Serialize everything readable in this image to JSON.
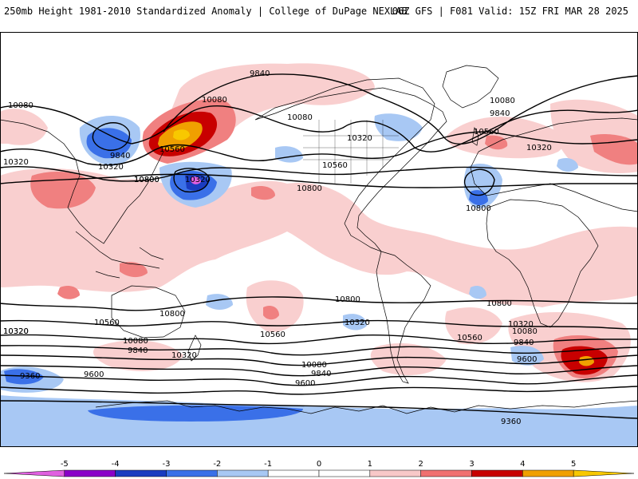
{
  "header": {
    "title": "250mb Height 1981-2010 Standardized Anomaly | College of DuPage NEXLAB",
    "model_info": "06Z GFS | F081 Valid: 15Z FRI MAR 28 2025"
  },
  "colorbar": {
    "ticks": [
      "-5",
      "-4",
      "-3",
      "-2",
      "-1",
      "0",
      "1",
      "2",
      "3",
      "4",
      "5"
    ],
    "colors": [
      "#e060e0",
      "#8a00c8",
      "#1a3cc0",
      "#3a70e8",
      "#a8c8f4",
      "#ffffff",
      "#ffffff",
      "#f8c8c8",
      "#f07070",
      "#c80000",
      "#f0a000",
      "#f8c800"
    ]
  },
  "contour_labels": [
    {
      "label": "9840",
      "value": 9840
    },
    {
      "label": "10080",
      "value": 10080
    },
    {
      "label": "10080",
      "value": 10080
    },
    {
      "label": "10080",
      "value": 10080
    },
    {
      "label": "9840",
      "value": 9840
    },
    {
      "label": "10080",
      "value": 10080
    },
    {
      "label": "10560",
      "value": 10560
    },
    {
      "label": "10320",
      "value": 10320
    },
    {
      "label": "10320",
      "value": 10320
    },
    {
      "label": "10320",
      "value": 10320
    },
    {
      "label": "10320",
      "value": 10320
    },
    {
      "label": "10560",
      "value": 10560
    },
    {
      "label": "10800",
      "value": 10800
    },
    {
      "label": "10800",
      "value": 10800
    },
    {
      "label": "10320",
      "value": 10320
    },
    {
      "label": "10800",
      "value": 10800
    },
    {
      "label": "10560",
      "value": 10560
    },
    {
      "label": "9840",
      "value": 9840
    },
    {
      "label": "10320",
      "value": 10320
    },
    {
      "label": "10800",
      "value": 10800
    },
    {
      "label": "10800",
      "value": 10800
    },
    {
      "label": "10800",
      "value": 10800
    },
    {
      "label": "10800",
      "value": 10800
    },
    {
      "label": "10320",
      "value": 10320
    },
    {
      "label": "10560",
      "value": 10560
    },
    {
      "label": "10560",
      "value": 10560
    },
    {
      "label": "10320",
      "value": 10320
    },
    {
      "label": "10320",
      "value": 10320
    },
    {
      "label": "10080",
      "value": 10080
    },
    {
      "label": "10080",
      "value": 10080
    },
    {
      "label": "9840",
      "value": 9840
    },
    {
      "label": "10320",
      "value": 10320
    },
    {
      "label": "10560",
      "value": 10560
    },
    {
      "label": "9840",
      "value": 9840
    },
    {
      "label": "9600",
      "value": 9600
    },
    {
      "label": "10080",
      "value": 10080
    },
    {
      "label": "9840",
      "value": 9840
    },
    {
      "label": "9600",
      "value": 9600
    },
    {
      "label": "9360",
      "value": 9360
    },
    {
      "label": "9600",
      "value": 9600
    },
    {
      "label": "9360",
      "value": 9360
    }
  ]
}
